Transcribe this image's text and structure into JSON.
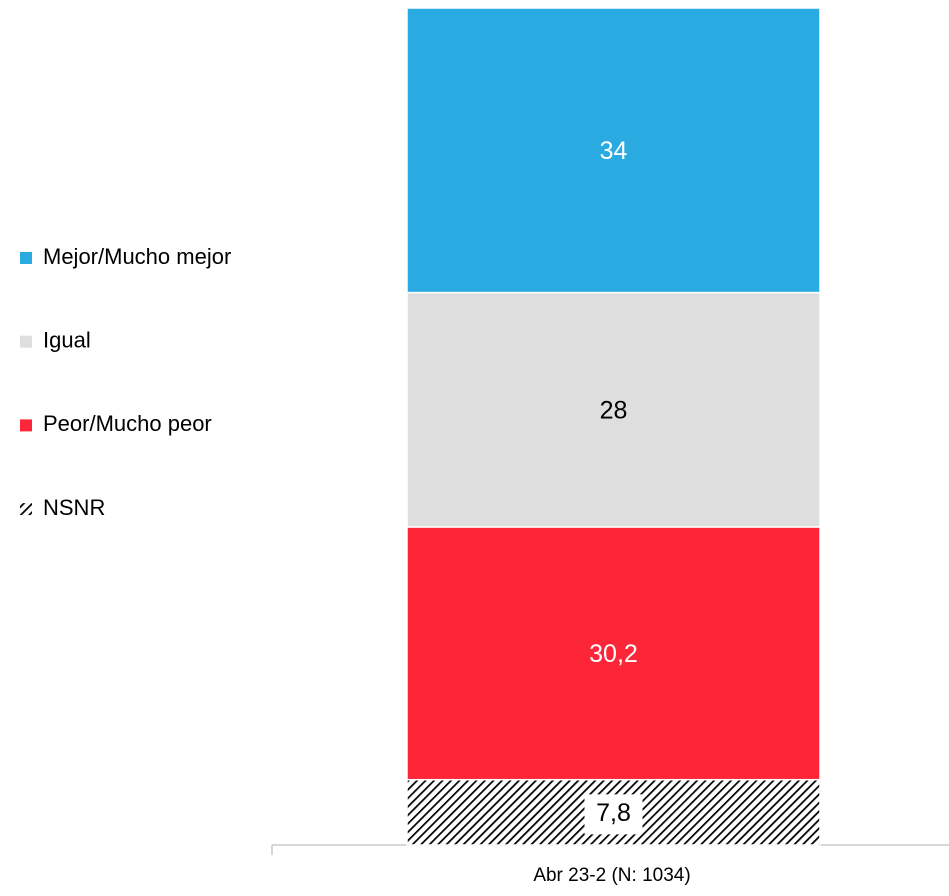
{
  "chart_data": {
    "type": "stacked_bar",
    "categories": [
      "Abr 23-2 (N: 1034)"
    ],
    "series": [
      {
        "name": "Mejor/Mucho mejor",
        "color": "#29abe2",
        "label_color": "#ffffff",
        "values": [
          34
        ]
      },
      {
        "name": "Igual",
        "color": "#dedede",
        "label_color": "#000000",
        "values": [
          28
        ]
      },
      {
        "name": "Peor/Mucho peor",
        "color": "#fc2638",
        "label_color": "#ffffff",
        "values": [
          30.2
        ],
        "value_labels": [
          "30,2"
        ]
      },
      {
        "name": "NSNR",
        "color": "#000000",
        "pattern": "hatch",
        "label_color": "#000000",
        "values": [
          7.8
        ],
        "value_labels": [
          "7,8"
        ]
      }
    ],
    "legend": "left"
  }
}
